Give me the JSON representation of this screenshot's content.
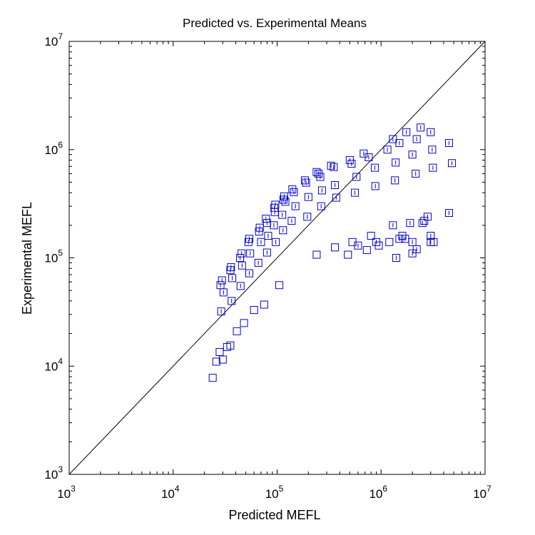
{
  "chart_data": {
    "type": "scatter",
    "title": "Predicted vs. Experimental Means",
    "xlabel": "Predicted MEFL",
    "ylabel": "Experimental MEFL",
    "xscale": "log",
    "yscale": "log",
    "xlim": [
      1000,
      10000000
    ],
    "ylim": [
      1000,
      10000000
    ],
    "tick_base": "10",
    "xticks": [
      "3",
      "4",
      "5",
      "6",
      "7"
    ],
    "yticks": [
      "3",
      "4",
      "5",
      "6",
      "7"
    ],
    "grid": false,
    "reference_line": "y = x",
    "colors": {
      "marker": "#0000cc",
      "reference_line": "#000000"
    },
    "series": [
      {
        "marker": "square-with-errorbar",
        "points": [
          [
            28500,
            56000
          ],
          [
            29500,
            62000
          ],
          [
            30500,
            48000
          ],
          [
            29000,
            32000
          ],
          [
            35500,
            77000
          ],
          [
            36000,
            82000
          ],
          [
            37000,
            65000
          ],
          [
            36500,
            40000
          ],
          [
            44000,
            100000
          ],
          [
            45500,
            110000
          ],
          [
            46000,
            85000
          ],
          [
            44500,
            55000
          ],
          [
            53000,
            140000
          ],
          [
            54000,
            150000
          ],
          [
            55000,
            110000
          ],
          [
            54000,
            72000
          ],
          [
            67000,
            175000
          ],
          [
            68000,
            190000
          ],
          [
            70000,
            140000
          ],
          [
            66000,
            90000
          ],
          [
            78000,
            230000
          ],
          [
            80000,
            210000
          ],
          [
            82000,
            160000
          ],
          [
            80000,
            112000
          ],
          [
            94000,
            290000
          ],
          [
            96000,
            310000
          ],
          [
            95000,
            265000
          ],
          [
            93000,
            200000
          ],
          [
            97000,
            140000
          ],
          [
            115000,
            345000
          ],
          [
            117000,
            370000
          ],
          [
            120000,
            330000
          ],
          [
            112000,
            250000
          ],
          [
            114000,
            180000
          ],
          [
            140000,
            430000
          ],
          [
            145000,
            405000
          ],
          [
            150000,
            300000
          ],
          [
            138000,
            220000
          ],
          [
            185000,
            520000
          ],
          [
            190000,
            495000
          ],
          [
            200000,
            365000
          ],
          [
            195000,
            240000
          ],
          [
            240000,
            620000
          ],
          [
            250000,
            600000
          ],
          [
            260000,
            560000
          ],
          [
            270000,
            420000
          ],
          [
            265000,
            300000
          ],
          [
            330000,
            710000
          ],
          [
            350000,
            690000
          ],
          [
            360000,
            470000
          ],
          [
            370000,
            360000
          ],
          [
            500000,
            800000
          ],
          [
            520000,
            740000
          ],
          [
            580000,
            560000
          ],
          [
            560000,
            400000
          ],
          [
            680000,
            920000
          ],
          [
            760000,
            850000
          ],
          [
            870000,
            680000
          ],
          [
            880000,
            460000
          ],
          [
            1150000,
            1000000
          ],
          [
            1300000,
            1250000
          ],
          [
            1380000,
            760000
          ],
          [
            1360000,
            520000
          ],
          [
            1500000,
            1150000
          ],
          [
            1750000,
            1450000
          ],
          [
            2000000,
            900000
          ],
          [
            2150000,
            600000
          ],
          [
            2200000,
            1250000
          ],
          [
            2400000,
            1600000
          ],
          [
            3000000,
            1450000
          ],
          [
            3100000,
            1000000
          ],
          [
            3150000,
            680000
          ],
          [
            4500000,
            1150000
          ],
          [
            4800000,
            750000
          ],
          [
            600000,
            130000
          ],
          [
            900000,
            140000
          ],
          [
            1300000,
            200000
          ],
          [
            1400000,
            100000
          ],
          [
            1500000,
            150000
          ],
          [
            1700000,
            150000
          ],
          [
            1900000,
            210000
          ],
          [
            2000000,
            140000
          ],
          [
            2000000,
            110000
          ],
          [
            2200000,
            120000
          ],
          [
            2500000,
            210000
          ],
          [
            2800000,
            240000
          ],
          [
            3000000,
            160000
          ],
          [
            3000000,
            140000
          ],
          [
            4500000,
            260000
          ]
        ]
      },
      {
        "marker": "square",
        "points": [
          [
            24000,
            7800
          ],
          [
            26000,
            11000
          ],
          [
            28000,
            13500
          ],
          [
            30000,
            11500
          ],
          [
            33000,
            15000
          ],
          [
            35500,
            15500
          ],
          [
            41000,
            21000
          ],
          [
            48000,
            25000
          ],
          [
            60000,
            33000
          ],
          [
            75000,
            37000
          ],
          [
            105000,
            56000
          ],
          [
            240000,
            107000
          ],
          [
            360000,
            125000
          ],
          [
            480000,
            107000
          ],
          [
            530000,
            140000
          ],
          [
            730000,
            118000
          ],
          [
            800000,
            160000
          ],
          [
            950000,
            130000
          ],
          [
            1200000,
            140000
          ],
          [
            1600000,
            160000
          ],
          [
            2600000,
            220000
          ],
          [
            3200000,
            140000
          ]
        ]
      }
    ]
  }
}
